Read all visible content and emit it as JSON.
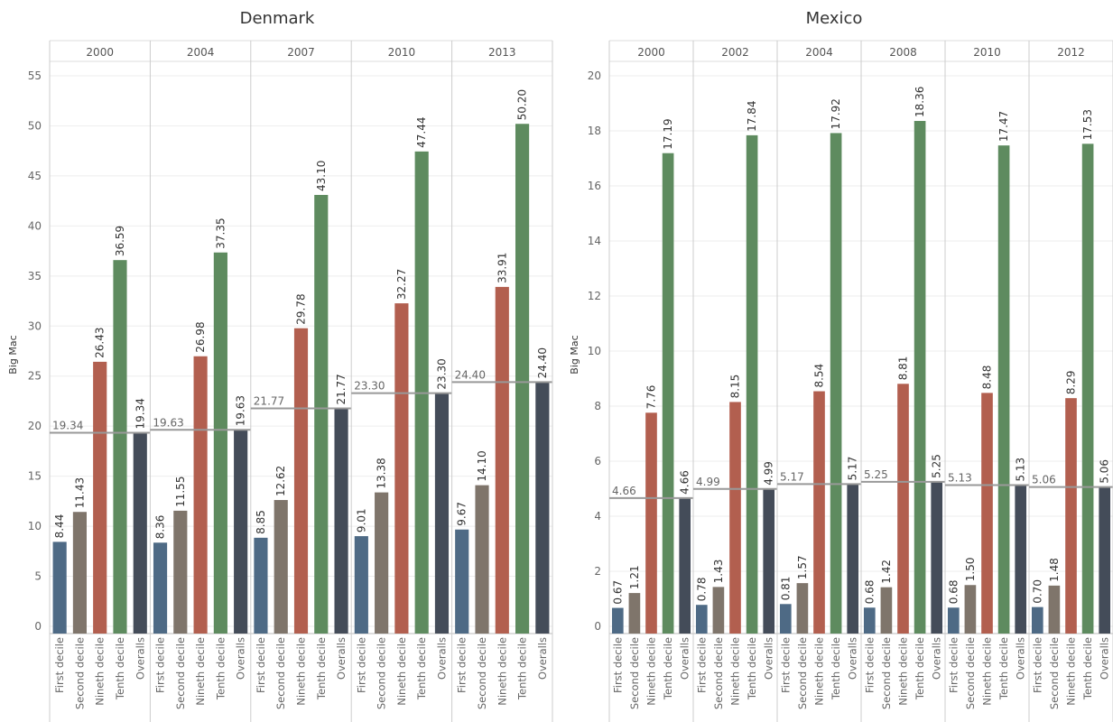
{
  "chart_data": [
    {
      "type": "bar",
      "title": "Denmark",
      "ylabel": "Big Mac",
      "ylim": [
        0,
        55
      ],
      "yticks": [
        0,
        5,
        10,
        15,
        20,
        25,
        30,
        35,
        40,
        45,
        50,
        55
      ],
      "ytick_labels": [
        "0",
        "5",
        "10",
        "15",
        "20",
        "25",
        "30",
        "35",
        "40",
        "45",
        "50",
        "55"
      ],
      "categories": [
        "First decile",
        "Second decile",
        "Nineth decile",
        "Tenth decile",
        "Overalls"
      ],
      "panels": [
        {
          "year": "2000",
          "values": [
            8.44,
            11.43,
            26.43,
            36.59,
            19.34
          ],
          "labels": [
            "8.44",
            "11.43",
            "26.43",
            "36.59",
            "19.34"
          ],
          "overall": 19.34,
          "overall_label": "19.34"
        },
        {
          "year": "2004",
          "values": [
            8.36,
            11.55,
            26.98,
            37.35,
            19.63
          ],
          "labels": [
            "8.36",
            "11.55",
            "26.98",
            "37.35",
            "19.63"
          ],
          "overall": 19.63,
          "overall_label": "19.63"
        },
        {
          "year": "2007",
          "values": [
            8.85,
            12.62,
            29.78,
            43.1,
            21.77
          ],
          "labels": [
            "8.85",
            "12.62",
            "29.78",
            "43.10",
            "21.77"
          ],
          "overall": 21.77,
          "overall_label": "21.77"
        },
        {
          "year": "2010",
          "values": [
            9.01,
            13.38,
            32.27,
            47.44,
            23.3
          ],
          "labels": [
            "9.01",
            "13.38",
            "32.27",
            "47.44",
            "23.30"
          ],
          "overall": 23.3,
          "overall_label": "23.30"
        },
        {
          "year": "2013",
          "values": [
            9.67,
            14.1,
            33.91,
            50.2,
            24.4
          ],
          "labels": [
            "9.67",
            "14.10",
            "33.91",
            "50.20",
            "24.40"
          ],
          "overall": 24.4,
          "overall_label": "24.40"
        }
      ],
      "grid": true
    },
    {
      "type": "bar",
      "title": "Mexico",
      "ylabel": "Big Mac",
      "ylim": [
        0,
        20
      ],
      "yticks": [
        0,
        2,
        4,
        6,
        8,
        10,
        12,
        14,
        16,
        18,
        20
      ],
      "ytick_labels": [
        "0",
        "2",
        "4",
        "6",
        "8",
        "10",
        "12",
        "14",
        "16",
        "18",
        "20"
      ],
      "categories": [
        "First decile",
        "Second decile",
        "Nineth decile",
        "Tenth decile",
        "Overalls"
      ],
      "panels": [
        {
          "year": "2000",
          "values": [
            0.67,
            1.21,
            7.76,
            17.19,
            4.66
          ],
          "labels": [
            "0.67",
            "1.21",
            "7.76",
            "17.19",
            "4.66"
          ],
          "overall": 4.66,
          "overall_label": "4.66"
        },
        {
          "year": "2002",
          "values": [
            0.78,
            1.43,
            8.15,
            17.84,
            4.99
          ],
          "labels": [
            "0.78",
            "1.43",
            "8.15",
            "17.84",
            "4.99"
          ],
          "overall": 4.99,
          "overall_label": "4.99"
        },
        {
          "year": "2004",
          "values": [
            0.81,
            1.57,
            8.54,
            17.92,
            5.17
          ],
          "labels": [
            "0.81",
            "1.57",
            "8.54",
            "17.92",
            "5.17"
          ],
          "overall": 5.17,
          "overall_label": "5.17"
        },
        {
          "year": "2008",
          "values": [
            0.68,
            1.42,
            8.81,
            18.36,
            5.25
          ],
          "labels": [
            "0.68",
            "1.42",
            "8.81",
            "18.36",
            "5.25"
          ],
          "overall": 5.25,
          "overall_label": "5.25"
        },
        {
          "year": "2010",
          "values": [
            0.68,
            1.5,
            8.48,
            17.47,
            5.13
          ],
          "labels": [
            "0.68",
            "1.50",
            "8.48",
            "17.47",
            "5.13"
          ],
          "overall": 5.13,
          "overall_label": "5.13"
        },
        {
          "year": "2012",
          "values": [
            0.7,
            1.48,
            8.29,
            17.53,
            5.06
          ],
          "labels": [
            "0.70",
            "1.48",
            "8.29",
            "17.53",
            "5.06"
          ],
          "overall": 5.06,
          "overall_label": "5.06"
        }
      ],
      "grid": true
    }
  ],
  "colors": {
    "first_decile": "#4e6a85",
    "second_decile": "#7f756b",
    "nineth_decile": "#b25f4f",
    "tenth_decile": "#5e8b5f",
    "overalls": "#444c59",
    "reference_line": "#999999",
    "grid": "#eeeeee",
    "divider": "#cccccc"
  }
}
